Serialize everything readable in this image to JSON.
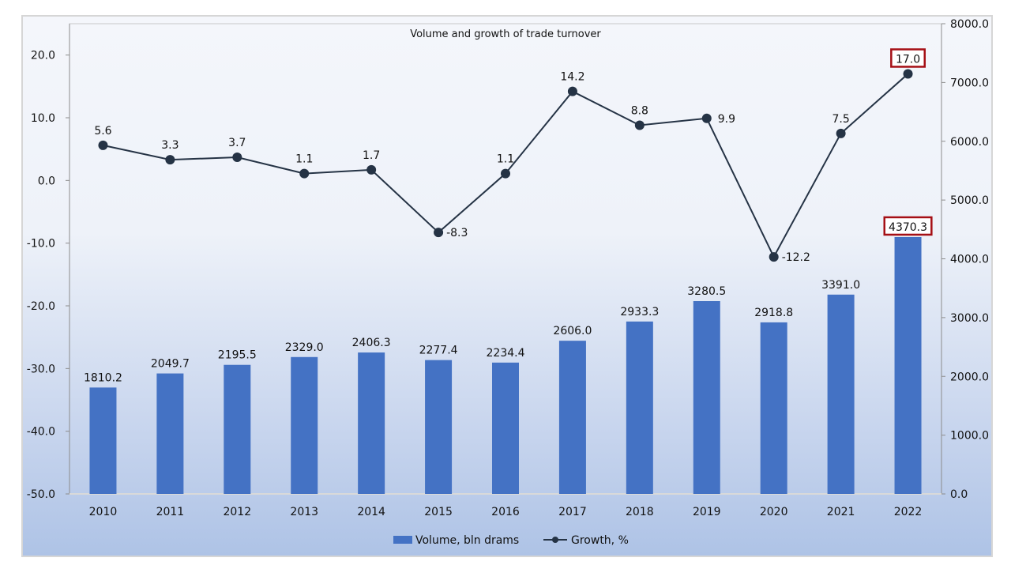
{
  "chart_data": {
    "type": "bar+line",
    "title": "Volume and growth of trade turnover",
    "categories": [
      "2010",
      "2011",
      "2012",
      "2013",
      "2014",
      "2015",
      "2016",
      "2017",
      "2018",
      "2019",
      "2020",
      "2021",
      "2022"
    ],
    "series": [
      {
        "name": "Volume, bln drams",
        "type": "bar",
        "axis": "right",
        "color": "#4472c4",
        "values": [
          1810.2,
          2049.7,
          2195.5,
          2329.0,
          2406.3,
          2277.4,
          2234.4,
          2606.0,
          2933.3,
          3280.5,
          2918.8,
          3391.0,
          4370.3
        ],
        "labels": [
          "1810.2",
          "2049.7",
          "2195.5",
          "2329.0",
          "2406.3",
          "2277.4",
          "2234.4",
          "2606.0",
          "2933.3",
          "3280.5",
          "2918.8",
          "3391.0",
          "4370.3"
        ]
      },
      {
        "name": "Growth, %",
        "type": "line",
        "axis": "left",
        "color": "#253345",
        "values": [
          5.6,
          3.3,
          3.7,
          1.1,
          1.7,
          -8.3,
          1.1,
          14.2,
          8.8,
          9.9,
          -12.2,
          7.5,
          17.0
        ],
        "labels": [
          "5.6",
          "3.3",
          "3.7",
          "1.1",
          "1.7",
          "-8.3",
          "1.1",
          "14.2",
          "8.8",
          "9.9",
          "-12.2",
          "7.5",
          "17.0"
        ]
      }
    ],
    "left_axis": {
      "range": [
        -50,
        25
      ],
      "ticks": [
        "20.0",
        "10.0",
        "0.0",
        "-10.0",
        "-20.0",
        "-30.0",
        "-40.0",
        "-50.0"
      ],
      "tick_values": [
        20,
        10,
        0,
        -10,
        -20,
        -30,
        -40,
        -50
      ]
    },
    "right_axis": {
      "range": [
        0,
        8000
      ],
      "ticks": [
        "8000.0",
        "7000.0",
        "6000.0",
        "5000.0",
        "4000.0",
        "3000.0",
        "2000.0",
        "1000.0",
        "0.0"
      ],
      "tick_values": [
        8000,
        7000,
        6000,
        5000,
        4000,
        3000,
        2000,
        1000,
        0
      ]
    },
    "highlighted_labels": [
      "17.0",
      "4370.3"
    ],
    "highlight_color": "#a50f15",
    "legend": {
      "placement": "bottom",
      "items": [
        "Volume, bln drams",
        "Growth, %"
      ]
    },
    "grid": false
  }
}
